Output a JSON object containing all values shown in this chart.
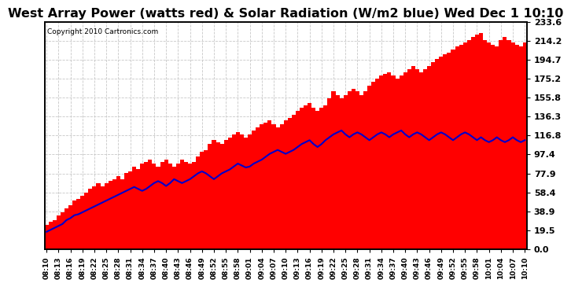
{
  "title": "West Array Power (watts red) & Solar Radiation (W/m2 blue) Wed Dec 1 10:10",
  "copyright": "Copyright 2010 Cartronics.com",
  "yticks": [
    0.0,
    19.5,
    38.9,
    58.4,
    77.9,
    97.4,
    116.8,
    136.3,
    155.8,
    175.2,
    194.7,
    214.2,
    233.6
  ],
  "ylim": [
    0.0,
    233.6
  ],
  "background_color": "#ffffff",
  "grid_color": "#c8c8c8",
  "bar_color": "#ff0000",
  "line_color": "#0000cc",
  "title_fontsize": 11.5,
  "xtick_labels": [
    "08:10",
    "08:13",
    "08:16",
    "08:19",
    "08:22",
    "08:25",
    "08:28",
    "08:31",
    "08:34",
    "08:37",
    "08:40",
    "08:43",
    "08:46",
    "08:49",
    "08:52",
    "08:55",
    "08:58",
    "09:01",
    "09:04",
    "09:07",
    "09:10",
    "09:13",
    "09:16",
    "09:19",
    "09:22",
    "09:25",
    "09:28",
    "09:31",
    "09:34",
    "09:37",
    "09:40",
    "09:43",
    "09:46",
    "09:49",
    "09:52",
    "09:55",
    "09:58",
    "10:01",
    "10:04",
    "10:07",
    "10:10"
  ],
  "power_values": [
    25,
    28,
    30,
    35,
    38,
    42,
    45,
    50,
    52,
    55,
    58,
    62,
    65,
    68,
    65,
    68,
    70,
    72,
    75,
    72,
    78,
    80,
    85,
    82,
    88,
    90,
    92,
    88,
    85,
    90,
    92,
    88,
    85,
    88,
    92,
    90,
    88,
    90,
    95,
    100,
    102,
    108,
    112,
    110,
    108,
    112,
    115,
    118,
    120,
    118,
    115,
    118,
    122,
    125,
    128,
    130,
    132,
    128,
    125,
    128,
    132,
    135,
    138,
    142,
    145,
    148,
    150,
    145,
    142,
    145,
    148,
    155,
    162,
    158,
    155,
    158,
    162,
    165,
    162,
    158,
    162,
    168,
    172,
    175,
    178,
    180,
    182,
    178,
    175,
    178,
    182,
    185,
    188,
    185,
    182,
    185,
    188,
    192,
    195,
    198,
    200,
    202,
    205,
    208,
    210,
    212,
    215,
    218,
    220,
    222,
    215,
    212,
    210,
    208,
    215,
    218,
    215,
    212,
    210,
    208,
    212
  ],
  "radiation_values": [
    18,
    20,
    22,
    24,
    26,
    30,
    32,
    35,
    36,
    38,
    40,
    42,
    44,
    46,
    48,
    50,
    52,
    54,
    56,
    58,
    60,
    62,
    64,
    62,
    60,
    62,
    65,
    68,
    70,
    68,
    65,
    68,
    72,
    70,
    68,
    70,
    72,
    75,
    78,
    80,
    78,
    75,
    72,
    75,
    78,
    80,
    82,
    85,
    88,
    86,
    84,
    85,
    88,
    90,
    92,
    95,
    98,
    100,
    102,
    100,
    98,
    100,
    102,
    105,
    108,
    110,
    112,
    108,
    105,
    108,
    112,
    115,
    118,
    120,
    122,
    118,
    115,
    118,
    120,
    118,
    115,
    112,
    115,
    118,
    120,
    118,
    115,
    118,
    120,
    122,
    118,
    115,
    118,
    120,
    118,
    115,
    112,
    115,
    118,
    120,
    118,
    115,
    112,
    115,
    118,
    120,
    118,
    115,
    112,
    115,
    112,
    110,
    112,
    115,
    112,
    110,
    112,
    115,
    112,
    110,
    112
  ]
}
